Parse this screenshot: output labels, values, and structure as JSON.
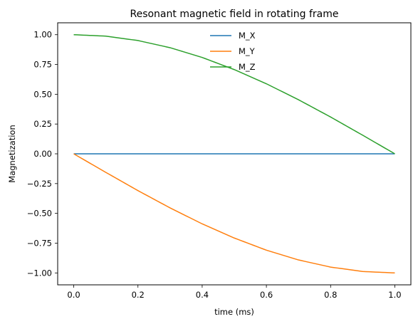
{
  "chart_data": {
    "type": "line",
    "title": "Resonant magnetic field in rotating frame",
    "xlabel": "time (ms)",
    "ylabel": "Magnetization",
    "xlim": [
      -0.05,
      1.05
    ],
    "ylim": [
      -1.1,
      1.1
    ],
    "xticks": [
      0.0,
      0.2,
      0.4,
      0.6,
      0.8,
      1.0
    ],
    "xtick_labels": [
      "0.0",
      "0.2",
      "0.4",
      "0.6",
      "0.8",
      "1.0"
    ],
    "yticks": [
      1.0,
      0.75,
      0.5,
      0.25,
      0.0,
      -0.25,
      -0.5,
      -0.75,
      -1.0
    ],
    "ytick_labels": [
      "1.00",
      "0.75",
      "0.50",
      "0.25",
      "0.00",
      "−0.25",
      "−0.50",
      "−0.75",
      "−1.00"
    ],
    "grid": false,
    "legend_position": "top-center",
    "x": [
      0.0,
      0.1,
      0.2,
      0.3,
      0.4,
      0.5,
      0.6,
      0.7,
      0.8,
      0.9,
      1.0
    ],
    "series": [
      {
        "name": "M_X",
        "color": "#1f77b4",
        "values": [
          0.0,
          0.0,
          0.0,
          0.0,
          0.0,
          0.0,
          0.0,
          0.0,
          0.0,
          0.0,
          0.0
        ]
      },
      {
        "name": "M_Y",
        "color": "#ff7f0e",
        "values": [
          0.0,
          -0.156,
          -0.309,
          -0.454,
          -0.588,
          -0.707,
          -0.809,
          -0.891,
          -0.951,
          -0.988,
          -1.0
        ]
      },
      {
        "name": "M_Z",
        "color": "#2ca02c",
        "values": [
          1.0,
          0.988,
          0.951,
          0.891,
          0.809,
          0.707,
          0.588,
          0.454,
          0.309,
          0.156,
          0.0
        ]
      }
    ]
  }
}
